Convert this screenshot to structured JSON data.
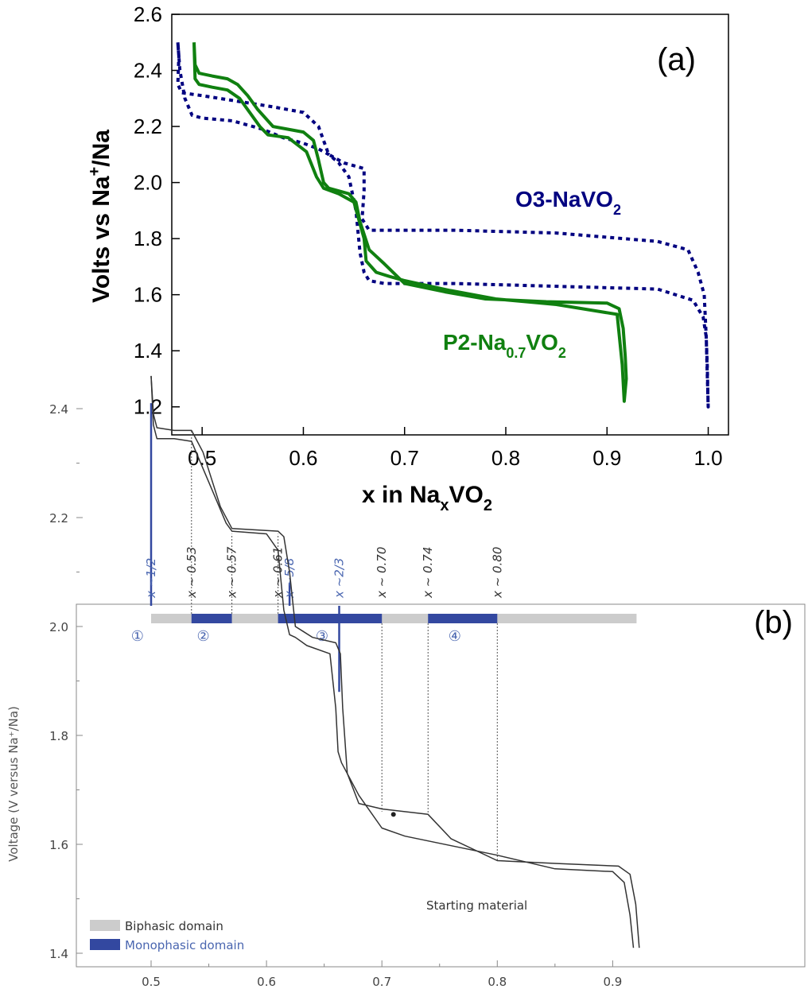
{
  "chart_data": [
    {
      "panel": "(a)",
      "type": "line",
      "xlabel": {
        "main": "x in Na",
        "sub": "x",
        "rest": "VO",
        "sub2": "2"
      },
      "ylabel": {
        "main": "Volts vs Na",
        "sup": "+",
        "rest": "/Na"
      },
      "xlim": [
        0.47,
        1.02
      ],
      "ylim": [
        1.1,
        2.6
      ],
      "xticks": [
        "0.5",
        "0.6",
        "0.7",
        "0.8",
        "0.9",
        "1.0"
      ],
      "yticks": [
        "1.2",
        "1.4",
        "1.6",
        "1.8",
        "2.0",
        "2.2",
        "2.4",
        "2.6"
      ],
      "series": [
        {
          "name": "O3-NaVO2",
          "label": {
            "main": "O3-NaVO",
            "sub": "2"
          },
          "color": "#000080",
          "style": "dotted",
          "x": [
            0.476,
            0.478,
            0.483,
            0.49,
            0.5,
            0.53,
            0.56,
            0.58,
            0.6,
            0.615,
            0.625,
            0.635,
            0.645,
            0.652,
            0.656,
            0.66,
            0.665,
            0.68,
            0.75,
            0.85,
            0.95,
            0.985,
            0.995,
            0.998,
            0.999,
            1.0,
            0.998,
            0.996,
            0.99,
            0.98,
            0.95,
            0.85,
            0.75,
            0.68,
            0.665,
            0.658,
            0.66,
            0.66,
            0.64,
            0.625,
            0.615,
            0.6,
            0.57,
            0.5,
            0.48,
            0.476,
            0.477,
            0.476
          ],
          "y": [
            2.5,
            2.4,
            2.3,
            2.24,
            2.23,
            2.22,
            2.19,
            2.16,
            2.14,
            2.12,
            2.1,
            2.07,
            2.02,
            1.9,
            1.75,
            1.68,
            1.65,
            1.64,
            1.64,
            1.63,
            1.62,
            1.58,
            1.52,
            1.45,
            1.35,
            1.2,
            1.45,
            1.6,
            1.68,
            1.76,
            1.79,
            1.82,
            1.83,
            1.83,
            1.83,
            1.87,
            1.97,
            2.05,
            2.07,
            2.1,
            2.2,
            2.25,
            2.27,
            2.31,
            2.32,
            2.35,
            2.45,
            2.5
          ]
        },
        {
          "name": "P2-Na0.7VO2",
          "label": {
            "main": "P2-Na",
            "sub": "0.7",
            "rest": "VO",
            "sub2": "2"
          },
          "color": "#108010",
          "style": "solid",
          "x": [
            0.492,
            0.493,
            0.497,
            0.51,
            0.525,
            0.535,
            0.545,
            0.555,
            0.57,
            0.6,
            0.61,
            0.615,
            0.62,
            0.625,
            0.635,
            0.645,
            0.652,
            0.656,
            0.665,
            0.68,
            0.7,
            0.74,
            0.78,
            0.84,
            0.9,
            0.912,
            0.916,
            0.918,
            0.919,
            0.917,
            0.915,
            0.91,
            0.85,
            0.79,
            0.745,
            0.7,
            0.685,
            0.672,
            0.662,
            0.66,
            0.65,
            0.635,
            0.62,
            0.613,
            0.603,
            0.585,
            0.565,
            0.557,
            0.547,
            0.537,
            0.525,
            0.51,
            0.497,
            0.493,
            0.492
          ],
          "y": [
            2.5,
            2.42,
            2.39,
            2.38,
            2.37,
            2.35,
            2.31,
            2.26,
            2.2,
            2.18,
            2.15,
            2.08,
            2.0,
            1.98,
            1.97,
            1.96,
            1.93,
            1.86,
            1.76,
            1.71,
            1.64,
            1.61,
            1.585,
            1.575,
            1.57,
            1.55,
            1.48,
            1.38,
            1.3,
            1.22,
            1.35,
            1.53,
            1.565,
            1.585,
            1.615,
            1.65,
            1.665,
            1.68,
            1.72,
            1.8,
            1.93,
            1.96,
            1.98,
            2.02,
            2.11,
            2.16,
            2.17,
            2.2,
            2.25,
            2.3,
            2.33,
            2.34,
            2.35,
            2.37,
            2.5
          ]
        }
      ]
    },
    {
      "panel": "(b)",
      "type": "line",
      "xlabel": "",
      "ylabel": "Voltage (V versus Na⁺/Na)",
      "xlim": [
        0.45,
        0.93
      ],
      "ylim": [
        1.37,
        2.57
      ],
      "xticks": [
        "0.5",
        "0.6",
        "0.7",
        "0.8",
        "0.9"
      ],
      "yticks": [
        "1.4",
        "1.6",
        "1.8",
        "2.0",
        "2.2",
        "2.4"
      ],
      "series": [
        {
          "name": "",
          "color": "#333333",
          "x": [
            0.5,
            0.502,
            0.505,
            0.52,
            0.535,
            0.555,
            0.565,
            0.57,
            0.6,
            0.61,
            0.615,
            0.62,
            0.625,
            0.635,
            0.655,
            0.66,
            0.662,
            0.665,
            0.68,
            0.7,
            0.72,
            0.8,
            0.85,
            0.9,
            0.91,
            0.915,
            0.918
          ],
          "y": [
            2.46,
            2.37,
            2.345,
            2.345,
            2.34,
            2.24,
            2.19,
            2.175,
            2.17,
            2.14,
            2.03,
            1.985,
            1.98,
            1.965,
            1.95,
            1.85,
            1.77,
            1.75,
            1.69,
            1.63,
            1.615,
            1.58,
            1.555,
            1.55,
            1.53,
            1.47,
            1.41
          ]
        },
        {
          "name": "",
          "color": "#333333",
          "x": [
            0.923,
            0.92,
            0.915,
            0.905,
            0.85,
            0.8,
            0.76,
            0.74,
            0.7,
            0.68,
            0.67,
            0.666,
            0.664,
            0.66,
            0.64,
            0.625,
            0.62,
            0.615,
            0.61,
            0.57,
            0.56,
            0.545,
            0.535,
            0.52,
            0.505,
            0.502,
            0.5
          ],
          "y": [
            1.41,
            1.49,
            1.545,
            1.56,
            1.565,
            1.57,
            1.61,
            1.655,
            1.665,
            1.675,
            1.73,
            1.85,
            1.95,
            1.97,
            1.98,
            2.0,
            2.1,
            2.165,
            2.175,
            2.18,
            2.22,
            2.32,
            2.36,
            2.36,
            2.365,
            2.39,
            2.46
          ]
        }
      ],
      "top_labels": [
        {
          "text": "x ~1/2",
          "color": "#4a66b0"
        },
        {
          "text": "x ~ 0.53",
          "color": "#333333"
        },
        {
          "text": "x ~ 0.57",
          "color": "#333333"
        },
        {
          "text": "x ~ 0.61",
          "color": "#333333"
        },
        {
          "text": "x ~5/8",
          "color": "#4a66b0"
        },
        {
          "text": "x ~2/3",
          "color": "#4a66b0"
        },
        {
          "text": "x ~ 0.70",
          "color": "#333333"
        },
        {
          "text": "x ~ 0.74",
          "color": "#333333"
        },
        {
          "text": "x ~ 0.80",
          "color": "#333333"
        }
      ],
      "top_label_x": [
        0.5,
        0.535,
        0.57,
        0.61,
        0.62,
        0.663,
        0.7,
        0.74,
        0.8
      ],
      "monophase_lines": [
        {
          "x": 0.5,
          "y_bottom": 2.41
        },
        {
          "x": 0.62,
          "y_bottom": 2.08
        },
        {
          "x": 0.663,
          "y_bottom": 1.88
        }
      ],
      "dashed_lines": [
        {
          "x": 0.535,
          "y_bottom": 2.36
        },
        {
          "x": 0.57,
          "y_bottom": 2.17
        },
        {
          "x": 0.61,
          "y_bottom": 2.17
        },
        {
          "x": 0.7,
          "y_bottom": 1.66
        },
        {
          "x": 0.74,
          "y_bottom": 1.655
        },
        {
          "x": 0.8,
          "y_bottom": 1.57
        }
      ],
      "domain_bar": {
        "range": [
          0.5,
          0.9
        ],
        "monophasic_ranges": [
          [
            0.535,
            0.57
          ],
          [
            0.61,
            0.7
          ],
          [
            0.74,
            0.8
          ]
        ]
      },
      "region_labels": [
        {
          "text": "①",
          "x": 0.495
        },
        {
          "text": "②",
          "x": 0.552
        },
        {
          "text": "③",
          "x": 0.655
        },
        {
          "text": "④",
          "x": 0.77
        }
      ],
      "starting_material": {
        "text": "Starting material",
        "x": 0.71,
        "y": 1.655
      },
      "legend": [
        {
          "label": "Biphasic domain",
          "color": "#cccccc",
          "text_color": "#333333"
        },
        {
          "label": "Monophasic domain",
          "color": "#3348a0",
          "text_color": "#4a66b0"
        }
      ]
    }
  ]
}
